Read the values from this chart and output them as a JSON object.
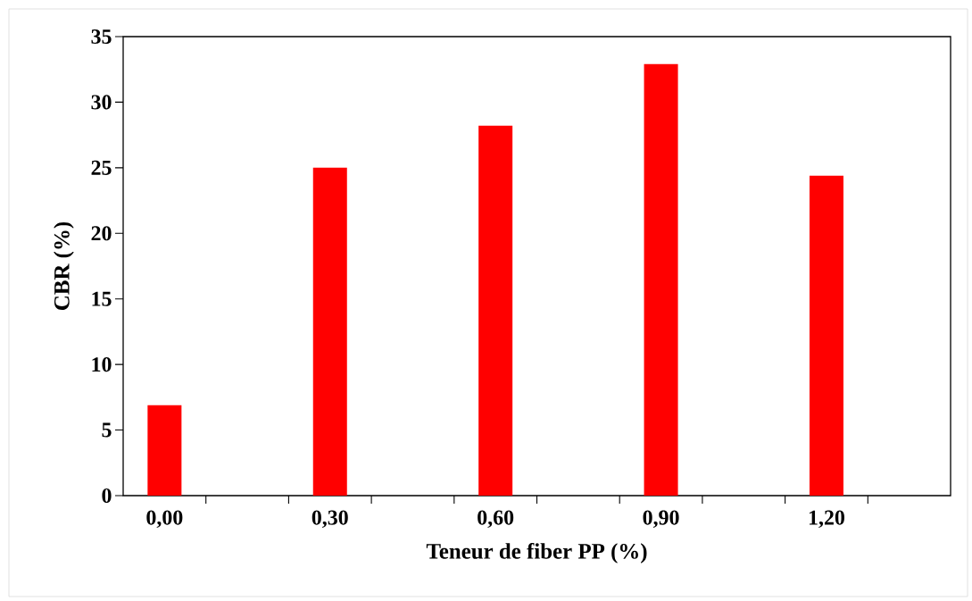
{
  "chart_data": {
    "type": "bar",
    "xlabel": "Teneur de fiber PP (%)",
    "ylabel": "CBR (%)",
    "categories": [
      "0,00",
      null,
      "0,30",
      null,
      "0,60",
      null,
      "0,90",
      null,
      "1,20",
      null
    ],
    "values": [
      6.9,
      null,
      25.0,
      null,
      28.2,
      null,
      32.9,
      null,
      24.4,
      null
    ],
    "color": "#ff0000",
    "ylim": [
      0,
      35
    ],
    "yticks": [
      0,
      5,
      10,
      15,
      20,
      25,
      30,
      35
    ]
  }
}
